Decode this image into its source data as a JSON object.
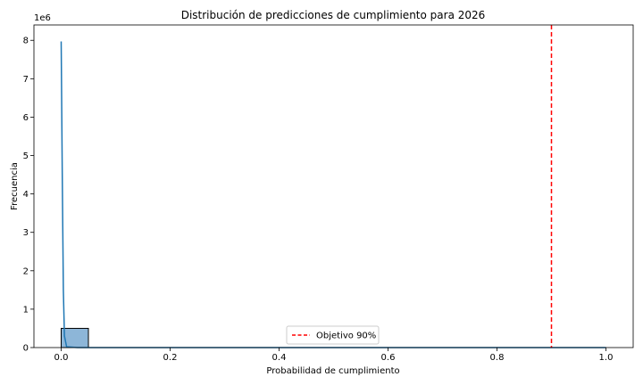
{
  "chart_data": {
    "type": "bar",
    "title": "Distribución de predicciones de cumplimiento para 2026",
    "xlabel": "Probabilidad de cumplimiento",
    "ylabel": "Frecuencia",
    "y_offset_label": "1e6",
    "xlim": [
      -0.05,
      1.05
    ],
    "ylim": [
      0,
      8.4
    ],
    "x_ticks": [
      "0.0",
      "0.2",
      "0.4",
      "0.6",
      "0.8",
      "1.0"
    ],
    "y_ticks": [
      "0",
      "1",
      "2",
      "3",
      "4",
      "5",
      "6",
      "7",
      "8"
    ],
    "histogram": {
      "bins": [
        {
          "x_start": 0.0,
          "x_end": 0.05,
          "value": 0.5
        }
      ],
      "color": "#8db6d8",
      "edge_color": "#000000"
    },
    "kde_line": {
      "color": "#1f77b4",
      "points": [
        [
          0.0,
          7.97
        ],
        [
          0.002,
          4.5
        ],
        [
          0.004,
          1.5
        ],
        [
          0.006,
          0.3
        ],
        [
          0.01,
          0.02
        ],
        [
          0.03,
          0.0
        ],
        [
          1.0,
          0.0
        ]
      ]
    },
    "reference_line": {
      "x": 0.9,
      "label": "Objetivo 90%",
      "color": "#ff0000",
      "style": "dashed"
    },
    "legend": {
      "placement": "lower-center",
      "entries": [
        "Objetivo 90%"
      ]
    },
    "grid": false
  }
}
